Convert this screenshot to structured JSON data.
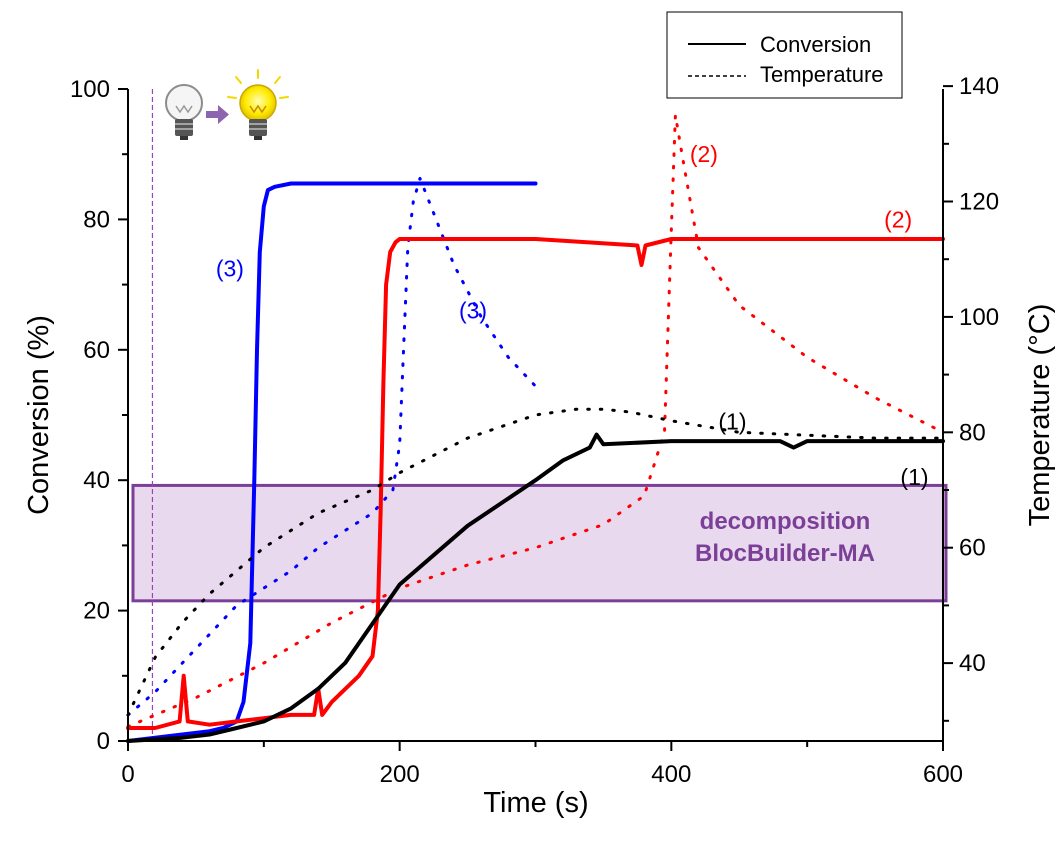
{
  "chart_data": {
    "type": "line",
    "xlabel": "Time (s)",
    "ylabel": "Conversion (%)",
    "y2label": "Temperature (°C)",
    "xlim": [
      0,
      600
    ],
    "ylim": [
      0,
      100
    ],
    "y2lim": [
      26.5,
      139.5
    ],
    "xticks": [
      0,
      200,
      400,
      600
    ],
    "yticks": [
      0,
      20,
      40,
      60,
      80,
      100
    ],
    "y2ticks": [
      40,
      60,
      80,
      100,
      120,
      140
    ],
    "grid": false,
    "legend": {
      "position": "top-right",
      "entries": [
        {
          "label": "Conversion",
          "style": "solid"
        },
        {
          "label": "Temperature",
          "style": "dotted"
        }
      ]
    },
    "light_on_time": 18,
    "band": {
      "ylo": 21.5,
      "yhi": 39.2,
      "text1": "decomposition",
      "text2": "BlocBuilder-MA",
      "color": "#7b3f98"
    },
    "series": [
      {
        "kind": "conversion",
        "color": "#0000ff",
        "x": [
          0,
          20,
          40,
          60,
          70,
          80,
          85,
          90,
          93,
          95,
          97,
          100,
          103,
          108,
          120,
          150,
          200,
          250,
          300
        ],
        "y": [
          0,
          0.5,
          1,
          1.5,
          2,
          3,
          6,
          15,
          40,
          60,
          75,
          82,
          84.5,
          85,
          85.5,
          85.5,
          85.5,
          85.5,
          85.5
        ]
      },
      {
        "kind": "temperature",
        "color": "#0000ff",
        "x": [
          0,
          20,
          40,
          60,
          80,
          100,
          120,
          140,
          160,
          180,
          195,
          200,
          203,
          206,
          210,
          215,
          220,
          240,
          260,
          280,
          300
        ],
        "y": [
          31,
          35,
          40,
          45,
          50,
          53,
          56,
          60,
          63,
          66,
          70,
          78,
          95,
          112,
          120,
          124,
          121,
          109,
          100,
          93,
          88
        ]
      },
      {
        "kind": "conversion",
        "color": "#ff0000",
        "x": [
          0,
          20,
          38,
          41,
          44,
          60,
          80,
          100,
          120,
          137,
          140,
          143,
          150,
          170,
          180,
          184,
          186,
          188,
          190,
          193,
          197,
          200,
          250,
          300,
          375,
          378,
          381,
          400,
          500,
          560,
          600
        ],
        "y": [
          2,
          2,
          3,
          10,
          3,
          2.5,
          3,
          3.5,
          4,
          4,
          8,
          4,
          6,
          10,
          13,
          20,
          35,
          55,
          70,
          75,
          76.5,
          77,
          77,
          77,
          76,
          73,
          76,
          77,
          77,
          77,
          77
        ]
      },
      {
        "kind": "temperature",
        "color": "#ff0000",
        "x": [
          0,
          50,
          100,
          150,
          200,
          250,
          300,
          350,
          380,
          395,
          400,
          403,
          408,
          420,
          450,
          500,
          550,
          600
        ],
        "y": [
          29,
          34,
          40,
          47,
          53,
          57,
          60,
          64,
          69,
          80,
          115,
          135,
          128,
          112,
          102,
          93,
          86,
          80
        ]
      },
      {
        "kind": "conversion",
        "color": "#000000",
        "x": [
          0,
          40,
          60,
          80,
          100,
          120,
          140,
          160,
          180,
          200,
          250,
          300,
          320,
          340,
          345,
          350,
          400,
          440,
          480,
          490,
          500,
          560,
          600
        ],
        "y": [
          0,
          0.5,
          1,
          2,
          3,
          5,
          8,
          12,
          18,
          24,
          33,
          40,
          43,
          45,
          47,
          45.5,
          46,
          46,
          46,
          45,
          46,
          46,
          46
        ]
      },
      {
        "kind": "temperature",
        "color": "#000000",
        "x": [
          0,
          20,
          40,
          60,
          80,
          100,
          120,
          140,
          160,
          180,
          200,
          250,
          300,
          330,
          350,
          370,
          400,
          450,
          500,
          550,
          600
        ],
        "y": [
          31,
          41,
          47,
          52,
          56,
          60,
          63,
          66,
          68,
          70,
          73,
          79,
          83,
          84,
          84,
          83.5,
          82,
          80,
          79.5,
          79,
          79
        ]
      }
    ],
    "annotations": [
      {
        "text": "(3)",
        "color": "#0000ff",
        "x": 75,
        "y": 72.5
      },
      {
        "text": "(3)",
        "color": "#0000ff",
        "x": 254,
        "y": 66
      },
      {
        "text": "(2)",
        "color": "#ff0000",
        "x": 424,
        "y": 90
      },
      {
        "text": "(2)",
        "color": "#ff0000",
        "x": 567,
        "y": 80
      },
      {
        "text": "(1)",
        "color": "#000000",
        "x": 445,
        "y": 49
      },
      {
        "text": "(1)",
        "color": "#000000",
        "x": 579,
        "y": 40.5
      }
    ]
  }
}
